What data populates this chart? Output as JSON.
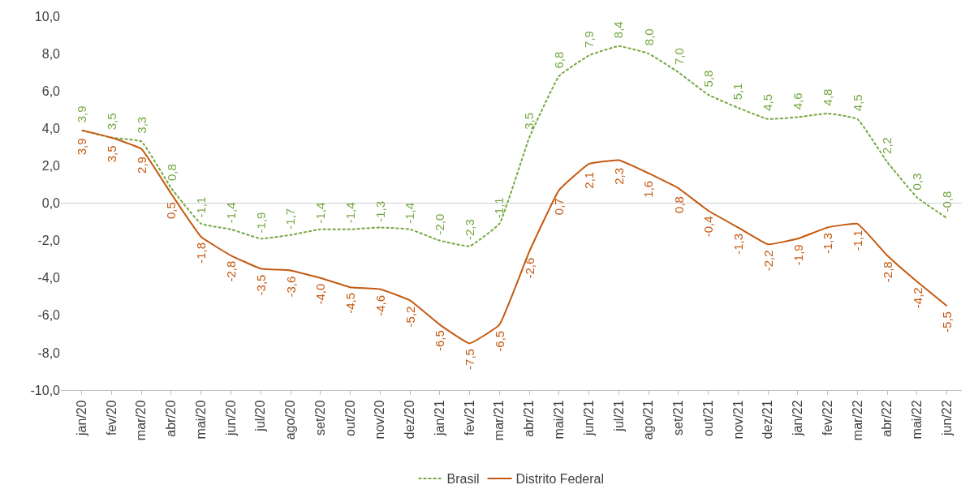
{
  "chart_data": {
    "type": "line",
    "categories": [
      "jan/20",
      "fev/20",
      "mar/20",
      "abr/20",
      "mai/20",
      "jun/20",
      "jul/20",
      "ago/20",
      "set/20",
      "out/20",
      "nov/20",
      "dez/20",
      "jan/21",
      "fev/21",
      "mar/21",
      "abr/21",
      "mai/21",
      "jun/21",
      "jul/21",
      "ago/21",
      "set/21",
      "out/21",
      "nov/21",
      "dez/21",
      "jan/22",
      "fev/22",
      "mar/22",
      "abr/22",
      "mai/22",
      "jun/22"
    ],
    "series": [
      {
        "name": "Brasil",
        "color": "#77a844",
        "line_style": "dashed",
        "values": [
          3.9,
          3.5,
          3.3,
          0.8,
          -1.1,
          -1.4,
          -1.9,
          -1.7,
          -1.4,
          -1.4,
          -1.3,
          -1.4,
          -2.0,
          -2.3,
          -1.1,
          3.5,
          6.8,
          7.9,
          8.4,
          8.0,
          7.0,
          5.8,
          5.1,
          4.5,
          4.6,
          4.8,
          4.5,
          2.2,
          0.3,
          -0.8
        ],
        "value_labels": [
          "3,9",
          "3,5",
          "3,3",
          "0,8",
          "-1,1",
          "-1,4",
          "-1,9",
          "-1,7",
          "-1,4",
          "-1,4",
          "-1,3",
          "-1,4",
          "-2,0",
          "-2,3",
          "-1,1",
          "3,5",
          "6,8",
          "7,9",
          "8,4",
          "8,0",
          "7,0",
          "5,8",
          "5,1",
          "4,5",
          "4,6",
          "4,8",
          "4,5",
          "2,2",
          "0,3",
          "-0,8"
        ]
      },
      {
        "name": "Distrito Federal",
        "color": "#c55a11",
        "line_style": "solid",
        "values": [
          3.9,
          3.5,
          2.9,
          0.5,
          -1.8,
          -2.8,
          -3.5,
          -3.6,
          -4.0,
          -4.5,
          -4.6,
          -5.2,
          -6.5,
          -7.5,
          -6.5,
          -2.6,
          0.7,
          2.1,
          2.3,
          1.6,
          0.8,
          -0.4,
          -1.3,
          -2.2,
          -1.9,
          -1.3,
          -1.1,
          -2.8,
          -4.2,
          -5.5
        ],
        "value_labels": [
          "3,9",
          "3,5",
          "2,9",
          "0,5",
          "-1,8",
          "-2,8",
          "-3,5",
          "-3,6",
          "-4,0",
          "-4,5",
          "-4,6",
          "-5,2",
          "-6,5",
          "-7,5",
          "-6,5",
          "-2,6",
          "0,7",
          "2,1",
          "2,3",
          "1,6",
          "0,8",
          "-0,4",
          "-1,3",
          "-2,2",
          "-1,9",
          "-1,3",
          "-1,1",
          "-2,8",
          "-4,2",
          "-5,5"
        ]
      }
    ],
    "ylim": [
      -10,
      10
    ],
    "yticks": [
      {
        "value": -10,
        "label": "-10,0"
      },
      {
        "value": -8,
        "label": "-8,0"
      },
      {
        "value": -6,
        "label": "-6,0"
      },
      {
        "value": -4,
        "label": "-4,0"
      },
      {
        "value": -2,
        "label": "-2,0"
      },
      {
        "value": 0,
        "label": "0,0"
      },
      {
        "value": 2,
        "label": "2,0"
      },
      {
        "value": 4,
        "label": "4,0"
      },
      {
        "value": 6,
        "label": "6,0"
      },
      {
        "value": 8,
        "label": "8,0"
      },
      {
        "value": 10,
        "label": "10,0"
      }
    ],
    "ref_lines": [
      {
        "axis": "y",
        "value": 0,
        "color": "#d0d0d0"
      }
    ],
    "grid": false,
    "legend": "bottom",
    "marker": "none"
  }
}
